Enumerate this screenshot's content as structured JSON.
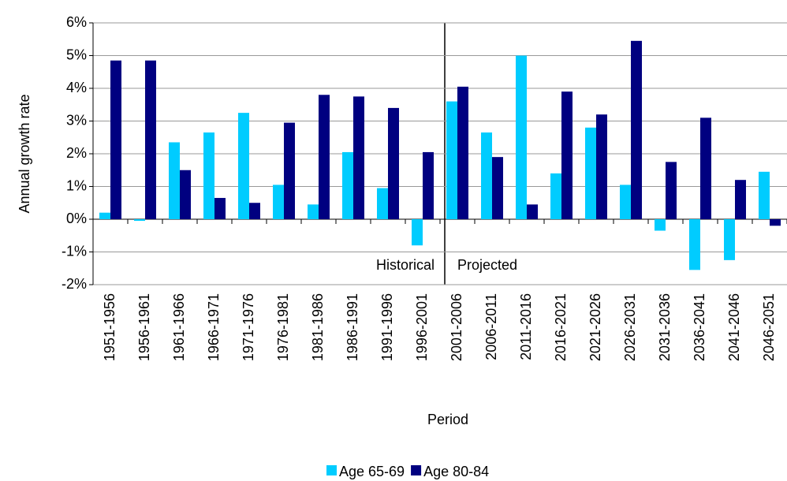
{
  "chart_data": {
    "type": "bar",
    "x_label": "Period",
    "y_label": "Annual growth rate",
    "categories": [
      "1951-1956",
      "1956-1961",
      "1961-1966",
      "1966-1971",
      "1971-1976",
      "1976-1981",
      "1981-1986",
      "1986-1991",
      "1991-1996",
      "1996-2001",
      "2001-2006",
      "2006-2011",
      "2011-2016",
      "2016-2021",
      "2021-2026",
      "2026-2031",
      "2031-2036",
      "2036-2041",
      "2041-2046",
      "2046-2051"
    ],
    "series": [
      {
        "name": "Age 65-69",
        "color": "#00ccff",
        "values": [
          0.2,
          -0.05,
          2.35,
          2.65,
          3.25,
          1.05,
          0.45,
          2.05,
          0.95,
          -0.8,
          3.6,
          2.65,
          5.0,
          1.4,
          2.8,
          1.05,
          -0.35,
          -1.55,
          -1.25,
          1.45
        ]
      },
      {
        "name": "Age 80-84",
        "color": "#000080",
        "values": [
          4.85,
          4.85,
          1.5,
          0.65,
          0.5,
          2.95,
          3.8,
          3.75,
          3.4,
          2.05,
          4.05,
          1.9,
          0.45,
          3.9,
          3.2,
          5.45,
          1.75,
          3.1,
          1.2,
          -0.2
        ]
      }
    ],
    "annotations": [
      "Historical",
      "Projected"
    ],
    "ylim": [
      -2,
      6
    ],
    "yticks": [
      {
        "value": -2,
        "label": "-2%"
      },
      {
        "value": -1,
        "label": "-1%"
      },
      {
        "value": 0,
        "label": "0%"
      },
      {
        "value": 1,
        "label": "1%"
      },
      {
        "value": 2,
        "label": "2%"
      },
      {
        "value": 3,
        "label": "3%"
      },
      {
        "value": 4,
        "label": "4%"
      },
      {
        "value": 5,
        "label": "5%"
      },
      {
        "value": 6,
        "label": "6%"
      }
    ],
    "grid": true
  }
}
